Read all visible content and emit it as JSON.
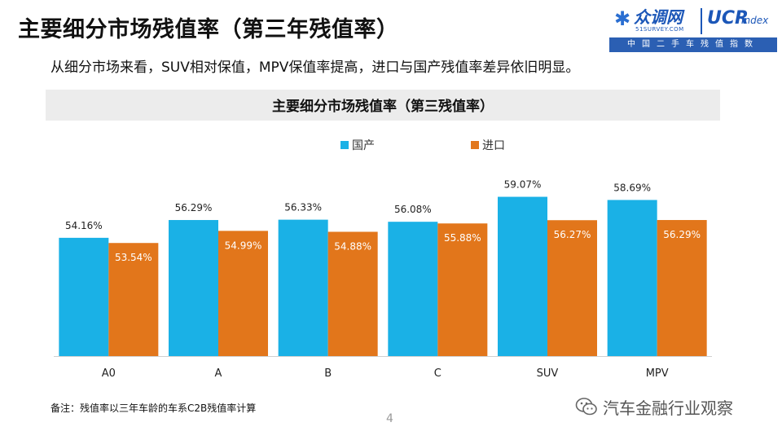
{
  "header": {
    "title": "主要细分市场残值率（第三年残值率）",
    "subtitle": "从细分市场来看，SUV相对保值，MPV保值率提高，进口与国产残值率差异依旧明显。"
  },
  "logo": {
    "brand": "众调网",
    "site": "51SURVEY.COM",
    "ucr": "UCR",
    "index": "Index",
    "band": "中国二手车残值指数"
  },
  "chart_data": {
    "type": "bar",
    "title": "主要细分市场残值率（第三残值率）",
    "categories": [
      "A0",
      "A",
      "B",
      "C",
      "SUV",
      "MPV"
    ],
    "series": [
      {
        "name": "国产",
        "values": [
          54.16,
          56.29,
          56.33,
          56.08,
          59.07,
          58.69
        ],
        "labels": [
          "54.16%",
          "56.29%",
          "56.33%",
          "56.08%",
          "59.07%",
          "58.69%"
        ],
        "color": "#1AB1E6"
      },
      {
        "name": "进口",
        "values": [
          53.54,
          54.99,
          54.88,
          55.88,
          56.27,
          56.29
        ],
        "labels": [
          "53.54%",
          "54.99%",
          "54.88%",
          "55.88%",
          "56.27%",
          "56.29%"
        ],
        "color": "#E2761B"
      }
    ],
    "ylim": [
      40,
      60
    ],
    "xlabel": "",
    "ylabel": "",
    "grid": false,
    "legend": "top-center",
    "title_band_color": "#ECECEC"
  },
  "footer": {
    "note": "备注：残值率以三年车龄的车系C2B残值率计算",
    "page": "4",
    "watermark": "汽车金融行业观察"
  }
}
